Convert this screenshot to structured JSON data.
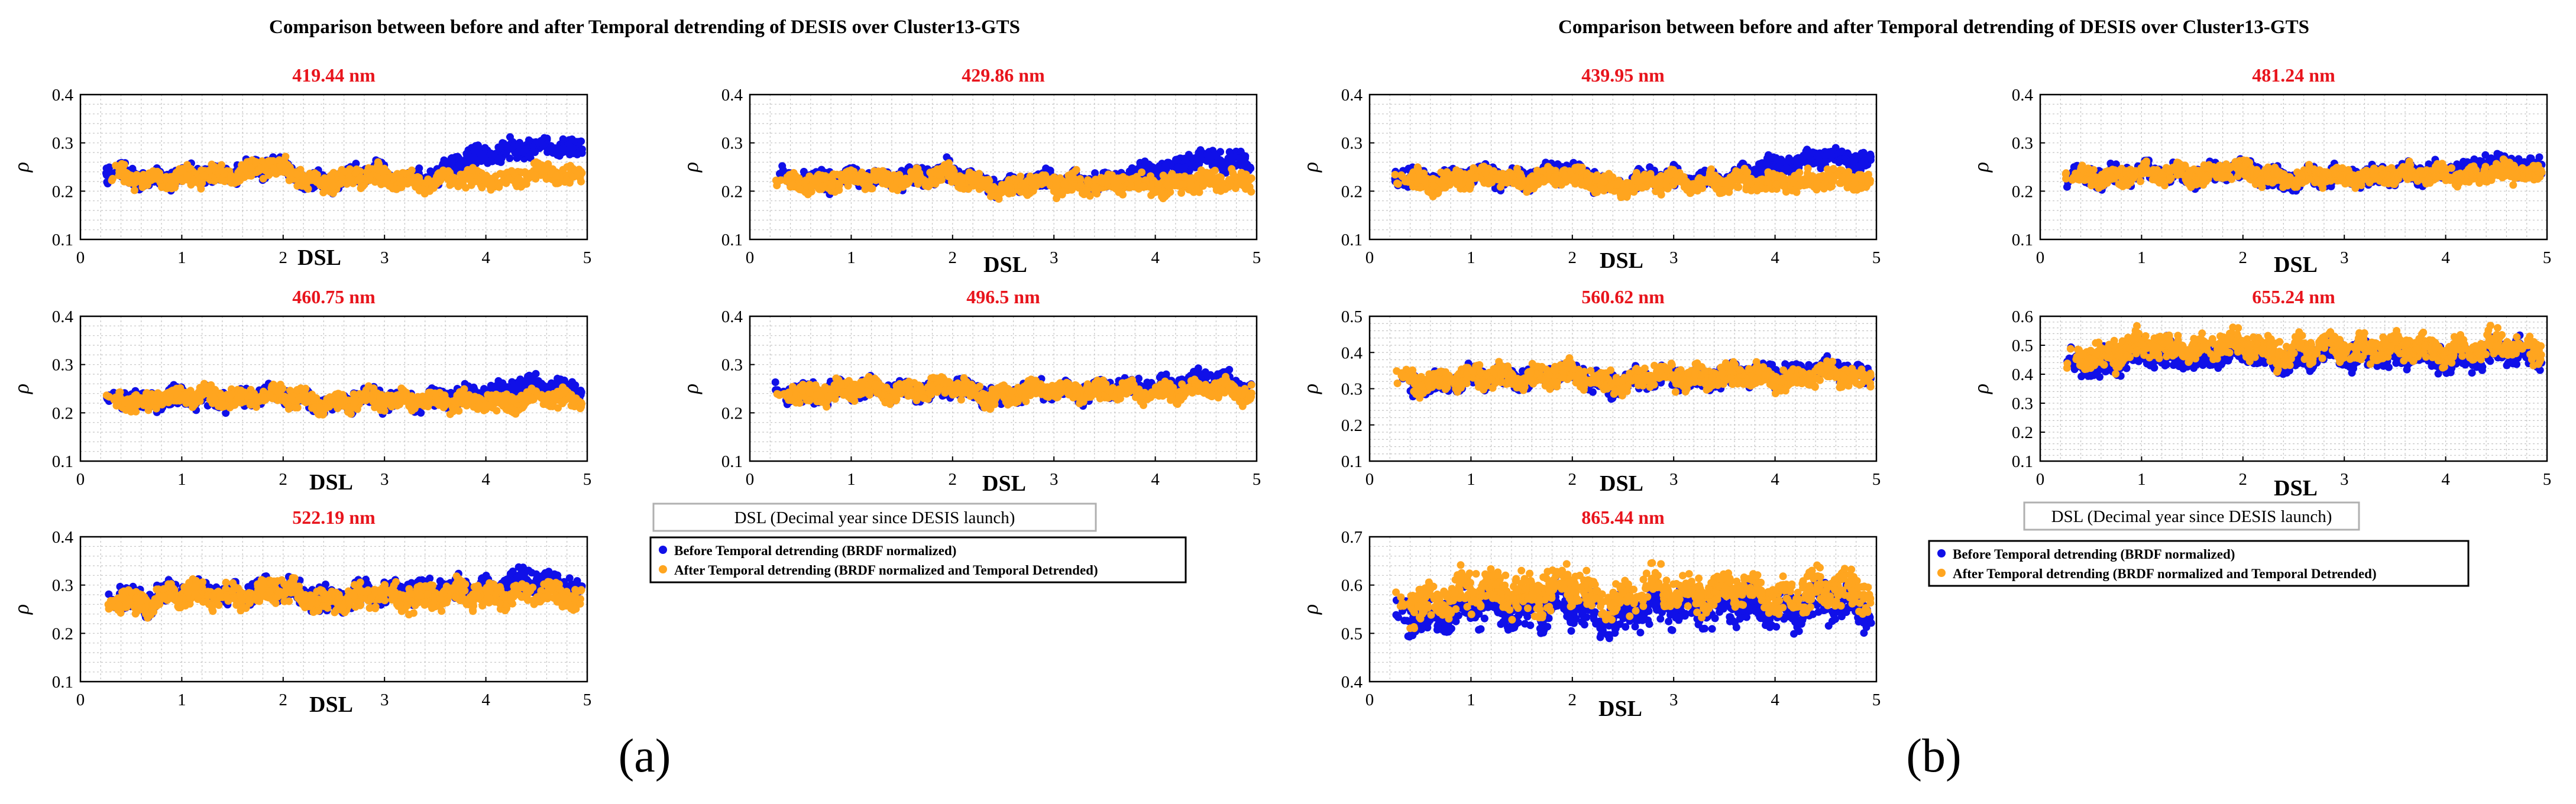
{
  "figure": {
    "panel_labels": [
      "(a)",
      "(b)"
    ],
    "suptitles": [
      "Comparison between before and after Temporal detrending of DESIS over Cluster13-GTS",
      "Comparison between before and after Temporal detrending of DESIS over Cluster13-GTS"
    ],
    "shared_xlabel": "DSL (Decimal year since DESIS launch)",
    "legend": {
      "before": "Before Temporal detrending (BRDF normalized)",
      "after": "After Temporal detrending (BRDF normalized and Temporal Detrended)"
    }
  },
  "colors": {
    "before": "#1010e8",
    "after": "#ffa51f",
    "title_red": "#e8141c",
    "grid": "#c4c4c4",
    "axis": "#000000"
  },
  "chart_data": [
    {
      "type": "scatter",
      "panel": "a",
      "title": "419.44 nm",
      "xlabel": "DSL",
      "ylabel": "ρ",
      "xlim": [
        0,
        5
      ],
      "ylim": [
        0.1,
        0.4
      ],
      "xticks": [
        0,
        1,
        2,
        3,
        4,
        5
      ],
      "yticks": [
        0.1,
        0.2,
        0.3,
        0.4
      ],
      "x_range": [
        0.25,
        4.95
      ],
      "series": [
        {
          "name": "Before Temporal detrending (BRDF normalized)",
          "knots_x": [
            0.25,
            1.0,
            1.9,
            2.3,
            3.0,
            3.5,
            3.8,
            4.2,
            4.75
          ],
          "knots_y": [
            0.235,
            0.225,
            0.25,
            0.22,
            0.235,
            0.225,
            0.27,
            0.285,
            0.29
          ],
          "spread": 0.02
        },
        {
          "name": "After Temporal detrending (BRDF normalized and Temporal Detrended)",
          "knots_x": [
            0.25,
            1.0,
            1.9,
            2.3,
            3.0,
            3.5,
            3.8,
            4.2,
            4.75
          ],
          "knots_y": [
            0.235,
            0.225,
            0.25,
            0.22,
            0.23,
            0.215,
            0.225,
            0.225,
            0.235
          ],
          "spread": 0.02
        }
      ]
    },
    {
      "type": "scatter",
      "panel": "a",
      "title": "429.86 nm",
      "xlabel": "DSL",
      "ylabel": "ρ",
      "xlim": [
        0,
        5
      ],
      "ylim": [
        0.1,
        0.4
      ],
      "xticks": [
        0,
        1,
        2,
        3,
        4,
        5
      ],
      "yticks": [
        0.1,
        0.2,
        0.3,
        0.4
      ],
      "x_range": [
        0.25,
        4.95
      ],
      "series": [
        {
          "name": "Before Temporal detrending (BRDF normalized)",
          "knots_x": [
            0.25,
            1.0,
            2.0,
            2.5,
            3.2,
            3.6,
            4.0,
            4.4,
            4.75
          ],
          "knots_y": [
            0.225,
            0.225,
            0.235,
            0.21,
            0.225,
            0.215,
            0.25,
            0.26,
            0.265
          ],
          "spread": 0.02
        },
        {
          "name": "After Temporal detrending (BRDF normalized and Temporal Detrended)",
          "knots_x": [
            0.25,
            1.0,
            2.0,
            2.5,
            3.2,
            3.6,
            4.0,
            4.4,
            4.75
          ],
          "knots_y": [
            0.22,
            0.22,
            0.23,
            0.205,
            0.22,
            0.21,
            0.215,
            0.215,
            0.22
          ],
          "spread": 0.02
        }
      ]
    },
    {
      "type": "scatter",
      "panel": "a",
      "title": "460.75 nm",
      "xlabel": "DSL",
      "ylabel": "ρ",
      "xlim": [
        0,
        5
      ],
      "ylim": [
        0.1,
        0.4
      ],
      "xticks": [
        0,
        1,
        2,
        3,
        4,
        5
      ],
      "yticks": [
        0.1,
        0.2,
        0.3,
        0.4
      ],
      "x_range": [
        0.25,
        4.95
      ],
      "series": [
        {
          "name": "Before Temporal detrending (BRDF normalized)",
          "knots_x": [
            0.25,
            1.0,
            2.0,
            2.5,
            3.2,
            3.6,
            4.0,
            4.4,
            4.75
          ],
          "knots_y": [
            0.225,
            0.23,
            0.235,
            0.22,
            0.23,
            0.225,
            0.245,
            0.255,
            0.25
          ],
          "spread": 0.02
        },
        {
          "name": "After Temporal detrending (BRDF normalized and Temporal Detrended)",
          "knots_x": [
            0.25,
            1.0,
            2.0,
            2.5,
            3.2,
            3.6,
            4.0,
            4.4,
            4.75
          ],
          "knots_y": [
            0.225,
            0.23,
            0.235,
            0.22,
            0.23,
            0.22,
            0.225,
            0.225,
            0.23
          ],
          "spread": 0.02
        }
      ]
    },
    {
      "type": "scatter",
      "panel": "a",
      "title": "496.5 nm",
      "xlabel": "DSL",
      "ylabel": "ρ",
      "xlim": [
        0,
        5
      ],
      "ylim": [
        0.1,
        0.4
      ],
      "xticks": [
        0,
        1,
        2,
        3,
        4,
        5
      ],
      "yticks": [
        0.1,
        0.2,
        0.3,
        0.4
      ],
      "x_range": [
        0.25,
        4.95
      ],
      "series": [
        {
          "name": "Before Temporal detrending (BRDF normalized)",
          "knots_x": [
            0.25,
            1.0,
            2.0,
            2.5,
            3.2,
            3.6,
            4.0,
            4.4,
            4.75
          ],
          "knots_y": [
            0.24,
            0.245,
            0.25,
            0.235,
            0.25,
            0.245,
            0.26,
            0.265,
            0.26
          ],
          "spread": 0.02
        },
        {
          "name": "After Temporal detrending (BRDF normalized and Temporal Detrended)",
          "knots_x": [
            0.25,
            1.0,
            2.0,
            2.5,
            3.2,
            3.6,
            4.0,
            4.4,
            4.75
          ],
          "knots_y": [
            0.24,
            0.245,
            0.25,
            0.235,
            0.25,
            0.24,
            0.245,
            0.245,
            0.245
          ],
          "spread": 0.02
        }
      ]
    },
    {
      "type": "scatter",
      "panel": "a",
      "title": "522.19 nm",
      "xlabel": "DSL",
      "ylabel": "ρ",
      "xlim": [
        0,
        5
      ],
      "ylim": [
        0.1,
        0.4
      ],
      "xticks": [
        0,
        1,
        2,
        3,
        4,
        5
      ],
      "yticks": [
        0.1,
        0.2,
        0.3,
        0.4
      ],
      "x_range": [
        0.25,
        4.95
      ],
      "series": [
        {
          "name": "Before Temporal detrending (BRDF normalized)",
          "knots_x": [
            0.25,
            1.0,
            2.0,
            2.5,
            3.2,
            3.6,
            4.0,
            4.4,
            4.75
          ],
          "knots_y": [
            0.27,
            0.28,
            0.29,
            0.27,
            0.29,
            0.285,
            0.3,
            0.305,
            0.3
          ],
          "spread": 0.025
        },
        {
          "name": "After Temporal detrending (BRDF normalized and Temporal Detrended)",
          "knots_x": [
            0.25,
            1.0,
            2.0,
            2.5,
            3.2,
            3.6,
            4.0,
            4.4,
            4.75
          ],
          "knots_y": [
            0.265,
            0.275,
            0.285,
            0.265,
            0.28,
            0.275,
            0.28,
            0.28,
            0.28
          ],
          "spread": 0.025
        }
      ]
    },
    {
      "type": "scatter",
      "panel": "b",
      "title": "439.95 nm",
      "xlabel": "DSL",
      "ylabel": "ρ",
      "xlim": [
        0,
        5
      ],
      "ylim": [
        0.1,
        0.4
      ],
      "xticks": [
        0,
        1,
        2,
        3,
        4,
        5
      ],
      "yticks": [
        0.1,
        0.2,
        0.3,
        0.4
      ],
      "x_range": [
        0.25,
        4.95
      ],
      "series": [
        {
          "name": "Before Temporal detrending (BRDF normalized)",
          "knots_x": [
            0.25,
            1.0,
            2.0,
            2.5,
            3.2,
            3.6,
            4.0,
            4.4,
            4.75
          ],
          "knots_y": [
            0.225,
            0.23,
            0.235,
            0.215,
            0.23,
            0.225,
            0.255,
            0.265,
            0.265
          ],
          "spread": 0.02
        },
        {
          "name": "After Temporal detrending (BRDF normalized and Temporal Detrended)",
          "knots_x": [
            0.25,
            1.0,
            2.0,
            2.5,
            3.2,
            3.6,
            4.0,
            4.4,
            4.75
          ],
          "knots_y": [
            0.22,
            0.225,
            0.23,
            0.21,
            0.225,
            0.215,
            0.22,
            0.22,
            0.225
          ],
          "spread": 0.02
        }
      ]
    },
    {
      "type": "scatter",
      "panel": "b",
      "title": "481.24 nm",
      "xlabel": "DSL",
      "ylabel": "ρ",
      "xlim": [
        0,
        5
      ],
      "ylim": [
        0.1,
        0.4
      ],
      "xticks": [
        0,
        1,
        2,
        3,
        4,
        5
      ],
      "yticks": [
        0.1,
        0.2,
        0.3,
        0.4
      ],
      "x_range": [
        0.25,
        4.95
      ],
      "series": [
        {
          "name": "Before Temporal detrending (BRDF normalized)",
          "knots_x": [
            0.25,
            1.0,
            2.0,
            2.5,
            3.2,
            3.6,
            4.0,
            4.4,
            4.75
          ],
          "knots_y": [
            0.23,
            0.235,
            0.24,
            0.225,
            0.235,
            0.23,
            0.245,
            0.255,
            0.25
          ],
          "spread": 0.02
        },
        {
          "name": "After Temporal detrending (BRDF normalized and Temporal Detrended)",
          "knots_x": [
            0.25,
            1.0,
            2.0,
            2.5,
            3.2,
            3.6,
            4.0,
            4.4,
            4.75
          ],
          "knots_y": [
            0.23,
            0.235,
            0.24,
            0.225,
            0.235,
            0.23,
            0.235,
            0.235,
            0.24
          ],
          "spread": 0.02
        }
      ]
    },
    {
      "type": "scatter",
      "panel": "b",
      "title": "560.62 nm",
      "xlabel": "DSL",
      "ylabel": "ρ",
      "xlim": [
        0,
        5
      ],
      "ylim": [
        0.1,
        0.5
      ],
      "xticks": [
        0,
        1,
        2,
        3,
        4,
        5
      ],
      "yticks": [
        0.1,
        0.2,
        0.3,
        0.4,
        0.5
      ],
      "x_range": [
        0.25,
        4.95
      ],
      "series": [
        {
          "name": "Before Temporal detrending (BRDF normalized)",
          "knots_x": [
            0.25,
            1.0,
            2.0,
            2.5,
            3.2,
            3.6,
            4.0,
            4.4,
            4.75
          ],
          "knots_y": [
            0.31,
            0.325,
            0.335,
            0.315,
            0.335,
            0.33,
            0.345,
            0.35,
            0.345
          ],
          "spread": 0.03
        },
        {
          "name": "After Temporal detrending (BRDF normalized and Temporal Detrended)",
          "knots_x": [
            0.25,
            1.0,
            2.0,
            2.5,
            3.2,
            3.6,
            4.0,
            4.4,
            4.75
          ],
          "knots_y": [
            0.32,
            0.33,
            0.34,
            0.32,
            0.34,
            0.33,
            0.335,
            0.335,
            0.335
          ],
          "spread": 0.03
        }
      ]
    },
    {
      "type": "scatter",
      "panel": "b",
      "title": "655.24 nm",
      "xlabel": "DSL",
      "ylabel": "ρ",
      "xlim": [
        0,
        5
      ],
      "ylim": [
        0.1,
        0.6
      ],
      "xticks": [
        0,
        1,
        2,
        3,
        4,
        5
      ],
      "yticks": [
        0.1,
        0.2,
        0.3,
        0.4,
        0.5,
        0.6
      ],
      "x_range": [
        0.25,
        4.95
      ],
      "series": [
        {
          "name": "Before Temporal detrending (BRDF normalized)",
          "knots_x": [
            0.25,
            1.0,
            2.0,
            2.5,
            3.2,
            3.6,
            4.0,
            4.4,
            4.75
          ],
          "knots_y": [
            0.43,
            0.46,
            0.47,
            0.455,
            0.47,
            0.465,
            0.46,
            0.465,
            0.47
          ],
          "spread": 0.045
        },
        {
          "name": "After Temporal detrending (BRDF normalized and Temporal Detrended)",
          "knots_x": [
            0.25,
            1.0,
            2.0,
            2.5,
            3.2,
            3.6,
            4.0,
            4.4,
            4.75
          ],
          "knots_y": [
            0.45,
            0.49,
            0.495,
            0.48,
            0.495,
            0.49,
            0.49,
            0.49,
            0.495
          ],
          "spread": 0.045
        }
      ]
    },
    {
      "type": "scatter",
      "panel": "b",
      "title": "865.44 nm",
      "xlabel": "DSL",
      "ylabel": "ρ",
      "xlim": [
        0,
        5
      ],
      "ylim": [
        0.4,
        0.7
      ],
      "xticks": [
        0,
        1,
        2,
        3,
        4,
        5
      ],
      "yticks": [
        0.4,
        0.5,
        0.6,
        0.7
      ],
      "x_range": [
        0.25,
        4.95
      ],
      "series": [
        {
          "name": "Before Temporal detrending (BRDF normalized)",
          "knots_x": [
            0.25,
            1.0,
            2.0,
            2.5,
            3.2,
            3.6,
            4.0,
            4.4,
            4.75
          ],
          "knots_y": [
            0.53,
            0.55,
            0.555,
            0.54,
            0.56,
            0.555,
            0.55,
            0.555,
            0.56
          ],
          "spread": 0.04
        },
        {
          "name": "After Temporal detrending (BRDF normalized and Temporal Detrended)",
          "knots_x": [
            0.25,
            1.0,
            2.0,
            2.5,
            3.2,
            3.6,
            4.0,
            4.4,
            4.75
          ],
          "knots_y": [
            0.56,
            0.585,
            0.59,
            0.575,
            0.59,
            0.585,
            0.585,
            0.585,
            0.59
          ],
          "spread": 0.04
        }
      ]
    }
  ]
}
